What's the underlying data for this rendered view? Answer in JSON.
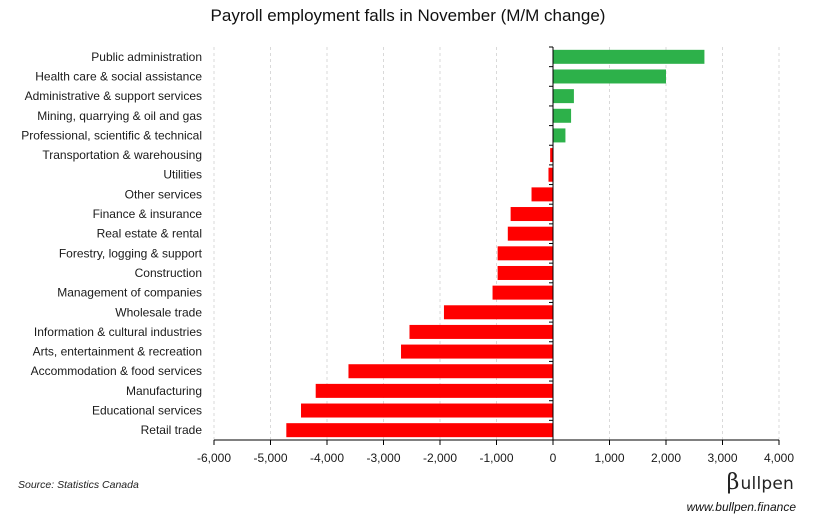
{
  "title": "Payroll employment falls in November (M/M change)",
  "source": "Source: Statistics Canada",
  "brand": {
    "symbol": "β",
    "name": "ullpen"
  },
  "website": "www.bullpen.finance",
  "colors": {
    "positive": "#2db14a",
    "negative": "#ff0000",
    "grid": "#d9d9d9",
    "axis": "#000000"
  },
  "chart_data": {
    "type": "bar",
    "orientation": "horizontal",
    "categories": [
      "Public administration",
      "Health care & social assistance",
      "Administrative & support services",
      "Mining, quarrying & oil and gas",
      "Professional, scientific & technical",
      "Transportation & warehousing",
      "Utilities",
      "Other services",
      "Finance & insurance",
      "Real estate & rental",
      "Forestry, logging & support",
      "Construction",
      "Management of companies",
      "Wholesale trade",
      "Information & cultural industries",
      "Arts, entertainment & recreation",
      "Accommodation & food services",
      "Manufacturing",
      "Educational services",
      "Retail trade"
    ],
    "values": [
      2680,
      2000,
      370,
      320,
      220,
      -50,
      -80,
      -380,
      -750,
      -800,
      -980,
      -980,
      -1070,
      -1930,
      -2540,
      -2690,
      -3620,
      -4200,
      -4460,
      -4720
    ],
    "xlim": [
      -6000,
      4000
    ],
    "xticks": [
      -6000,
      -5000,
      -4000,
      -3000,
      -2000,
      -1000,
      0,
      1000,
      2000,
      3000,
      4000
    ],
    "xtick_labels": [
      "-6,000",
      "-5,000",
      "-4,000",
      "-3,000",
      "-2,000",
      "-1,000",
      "0",
      "1,000",
      "2,000",
      "3,000",
      "4,000"
    ],
    "grid": "vertical dashed",
    "legend": "none"
  }
}
